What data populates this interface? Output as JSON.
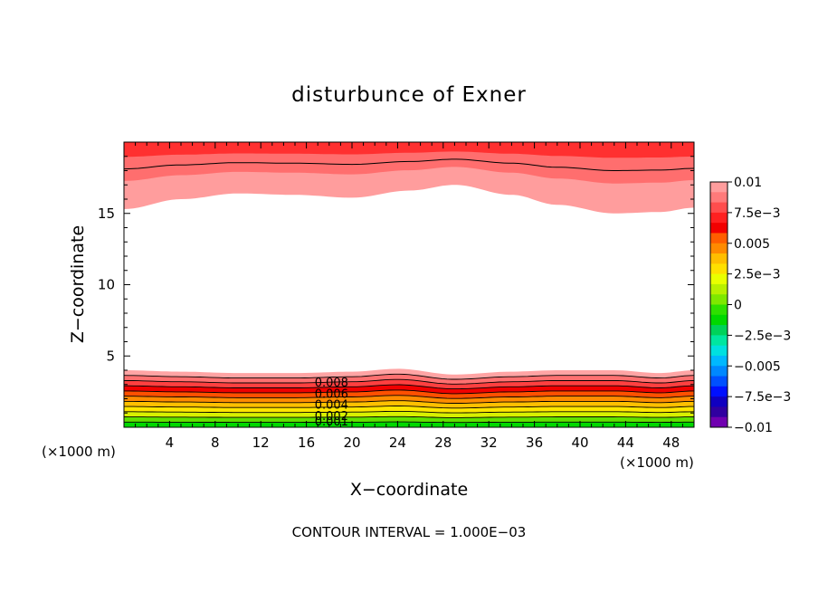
{
  "chart_data": {
    "type": "contour",
    "title": "disturbunce of Exner",
    "xlabel": "X−coordinate",
    "ylabel": "Z−coordinate",
    "x_unit": "(×1000 m)",
    "x_unit_repeat": "(×1000 m)",
    "xlim": [
      0,
      50
    ],
    "ylim": [
      0,
      20
    ],
    "x_ticks": [
      4,
      8,
      12,
      16,
      20,
      24,
      28,
      32,
      36,
      40,
      44,
      48
    ],
    "y_ticks": [
      5,
      10,
      15
    ],
    "footer": "CONTOUR INTERVAL = 1.000E−03",
    "contour_labels": [
      "0.008",
      "0.006",
      "0.004",
      "0.002",
      "0.001"
    ],
    "colorbar": {
      "labels": [
        "0.01",
        "7.5e−3",
        "0.005",
        "2.5e−3",
        "0",
        "−2.5e−3",
        "−0.005",
        "−7.5e−3",
        "−0.01"
      ],
      "levels": [
        0.01,
        0.0075,
        0.005,
        0.0025,
        0,
        -0.0025,
        -0.005,
        -0.0075,
        -0.01
      ],
      "colors": [
        "#ff9d9d",
        "#ff7a7a",
        "#ff4d4d",
        "#ff2020",
        "#f20000",
        "#ff5e00",
        "#ff8a00",
        "#ffbe00",
        "#ffe000",
        "#e9ff00",
        "#b8f000",
        "#7ee800",
        "#2ee000",
        "#00d800",
        "#00d25a",
        "#00e6a0",
        "#00e0e0",
        "#00b8ff",
        "#0088ff",
        "#0050ff",
        "#0010ff",
        "#1000c0",
        "#3000a0",
        "#7000b0"
      ]
    },
    "upper_layer": {
      "z_lower_edge_samples_x": [
        0,
        5,
        10,
        15,
        20,
        25,
        29,
        34,
        38,
        43,
        47,
        50
      ],
      "z_lower_edge_samples_z": [
        15.3,
        16.0,
        16.4,
        16.3,
        16.1,
        16.6,
        17.0,
        16.3,
        15.6,
        15.0,
        15.1,
        15.4
      ],
      "values": [
        0.008,
        0.009,
        0.01
      ]
    },
    "lower_layer": {
      "z_top_samples_x": [
        0,
        5,
        10,
        15,
        20,
        24,
        29,
        34,
        38,
        43,
        47,
        50
      ],
      "z_top_samples_z": [
        4.0,
        3.9,
        3.8,
        3.8,
        3.9,
        4.1,
        3.7,
        3.9,
        4.0,
        4.0,
        3.8,
        4.0
      ],
      "values": [
        0.01,
        0.009,
        0.008,
        0.007,
        0.006,
        0.005,
        0.004,
        0.003,
        0.002,
        0.001,
        0.0
      ]
    }
  }
}
